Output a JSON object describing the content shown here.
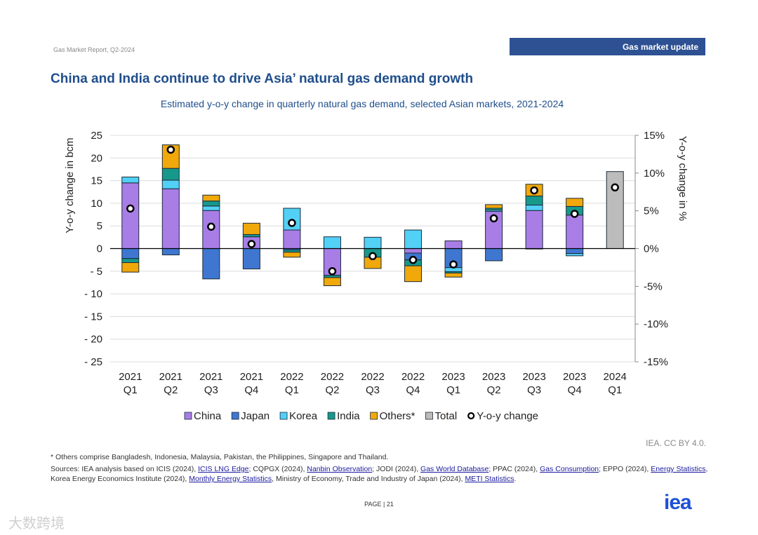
{
  "header": {
    "report": "Gas Market Report, Q2-2024",
    "banner": "Gas market update"
  },
  "title": "China and India continue to drive Asia’ natural gas demand growth",
  "subtitle": "Estimated y-o-y change in quarterly natural gas demand, selected Asian markets, 2021-2024",
  "chart_data": {
    "type": "bar",
    "stacked": true,
    "categories": [
      [
        "2021",
        "Q1"
      ],
      [
        "2021",
        "Q2"
      ],
      [
        "2021",
        "Q3"
      ],
      [
        "2021",
        "Q4"
      ],
      [
        "2022",
        "Q1"
      ],
      [
        "2022",
        "Q2"
      ],
      [
        "2022",
        "Q3"
      ],
      [
        "2022",
        "Q4"
      ],
      [
        "2023",
        "Q1"
      ],
      [
        "2023",
        "Q2"
      ],
      [
        "2023",
        "Q3"
      ],
      [
        "2023",
        "Q4"
      ],
      [
        "2024",
        "Q1"
      ]
    ],
    "ylabel": "Y-o-y change in bcm",
    "y2label": "Y-o-y change in %",
    "ylim": [
      -25,
      25
    ],
    "y2lim": [
      -15,
      15
    ],
    "yticks": [
      25,
      20,
      15,
      10,
      5,
      0,
      -5,
      -10,
      -15,
      -20,
      -25
    ],
    "ytick_labels": [
      "25",
      "20",
      "15",
      "10",
      "5",
      "0",
      "- 5",
      "- 10",
      "- 15",
      "- 20",
      "- 25"
    ],
    "y2ticks": [
      15,
      10,
      5,
      0,
      -5,
      -10,
      -15
    ],
    "y2tick_labels": [
      "15%",
      "10%",
      "5%",
      "0%",
      "-5%",
      "-10%",
      "-15%"
    ],
    "grid": true,
    "legend_position": "bottom",
    "series": [
      {
        "name": "China",
        "color": "#a87ee6",
        "values": [
          14.5,
          13.2,
          8.4,
          2.6,
          4.1,
          -5.9,
          0,
          -1.0,
          1.7,
          8.2,
          8.4,
          7.4,
          0
        ]
      },
      {
        "name": "Japan",
        "color": "#3f77d0",
        "values": [
          -2.2,
          -1.4,
          -6.7,
          -4.5,
          -0.3,
          0,
          0,
          -1.5,
          -4.2,
          -2.7,
          -0.1,
          -1.1,
          0
        ]
      },
      {
        "name": "Korea",
        "color": "#52d0f5",
        "values": [
          1.3,
          1.9,
          1.0,
          0,
          4.8,
          2.6,
          2.5,
          4.1,
          -0.9,
          0.3,
          1.2,
          -0.5,
          0
        ]
      },
      {
        "name": "India",
        "color": "#16998a",
        "values": [
          -0.9,
          2.6,
          1.1,
          0.5,
          -0.5,
          -0.5,
          -1.9,
          -1.3,
          -0.3,
          0.4,
          2.0,
          1.9,
          0
        ]
      },
      {
        "name": "Others*",
        "color": "#f0a80a",
        "values": [
          -2.1,
          5.2,
          1.3,
          2.5,
          -1.1,
          -1.8,
          -2.5,
          -3.5,
          -0.9,
          0.8,
          2.6,
          1.8,
          0
        ]
      },
      {
        "name": "Total",
        "color": "#bcbcbc",
        "values": [
          0,
          0,
          0,
          0,
          0,
          0,
          0,
          0,
          0,
          0,
          0,
          0,
          17.0
        ]
      }
    ],
    "yoy": {
      "name": "Y-o-y change",
      "unit": "%",
      "values": [
        5.3,
        13.1,
        2.9,
        0.6,
        3.4,
        -3.0,
        -1.0,
        -1.5,
        -2.1,
        4.0,
        7.7,
        4.6,
        8.1
      ]
    }
  },
  "footer": {
    "credit": "IEA. CC BY 4.0.",
    "note": "* Others comprise Bangladesh, Indonesia, Malaysia, Pakistan, the Philippines, Singapore and Thailand.",
    "sources": [
      {
        "t": "Sources: IEA analysis based on ICIS (2024), "
      },
      {
        "t": "ICIS LNG Edge",
        "link": true
      },
      {
        "t": "; CQPGX (2024), "
      },
      {
        "t": "Nanbin Observation",
        "link": true
      },
      {
        "t": "; JODI (2024), "
      },
      {
        "t": "Gas World Database",
        "link": true
      },
      {
        "t": "; PPAC (2024), "
      },
      {
        "t": "Gas Consumption",
        "link": true
      },
      {
        "t": "; EPPO (2024), "
      },
      {
        "t": "Energy Statistics",
        "link": true
      },
      {
        "t": ", Korea Energy Economics Institute (2024), "
      },
      {
        "t": "Monthly Energy Statistics",
        "link": true
      },
      {
        "t": ", Ministry of Economy, Trade and Industry of Japan (2024), "
      },
      {
        "t": "METI Statistics",
        "link": true
      },
      {
        "t": "."
      }
    ],
    "page": "PAGE | 21",
    "logo": "iea",
    "watermark": "大数跨境"
  }
}
